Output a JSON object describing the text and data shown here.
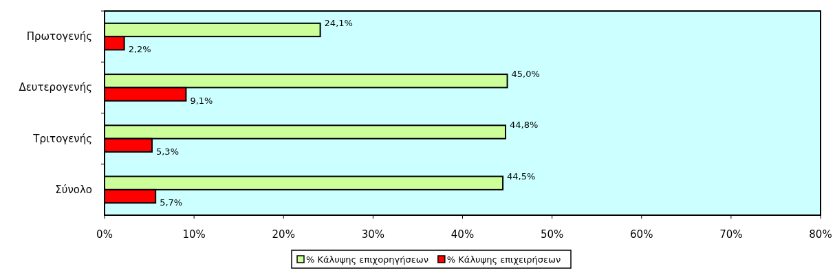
{
  "chart_data": {
    "type": "bar",
    "orientation": "horizontal",
    "categories": [
      "Πρωτογενής",
      "Δευτερογενής",
      "Τριτογενής",
      "Σύνολο"
    ],
    "series": [
      {
        "name": "% Κάλυψης επιχορηγήσεων",
        "color": "#ccff99",
        "values": [
          24.1,
          45.0,
          44.8,
          44.5
        ],
        "value_labels": [
          "24,1%",
          "45,0%",
          "44,8%",
          "44,5%"
        ]
      },
      {
        "name": "% Κάλυψης επιχειρήσεων",
        "color": "#ff0000",
        "values": [
          2.2,
          9.1,
          5.3,
          5.7
        ],
        "value_labels": [
          "2,2%",
          "9,1%",
          "5,3%",
          "5,7%"
        ]
      }
    ],
    "xlim": [
      0,
      80
    ],
    "xticks": [
      {
        "value": 0,
        "label": "0%"
      },
      {
        "value": 10,
        "label": "10%"
      },
      {
        "value": 20,
        "label": "20%"
      },
      {
        "value": 30,
        "label": "30%"
      },
      {
        "value": 40,
        "label": "40%"
      },
      {
        "value": 50,
        "label": "50%"
      },
      {
        "value": 60,
        "label": "60%"
      },
      {
        "value": 70,
        "label": "70%"
      },
      {
        "value": 80,
        "label": "80%"
      }
    ],
    "grid": false,
    "legend": "bottom"
  }
}
